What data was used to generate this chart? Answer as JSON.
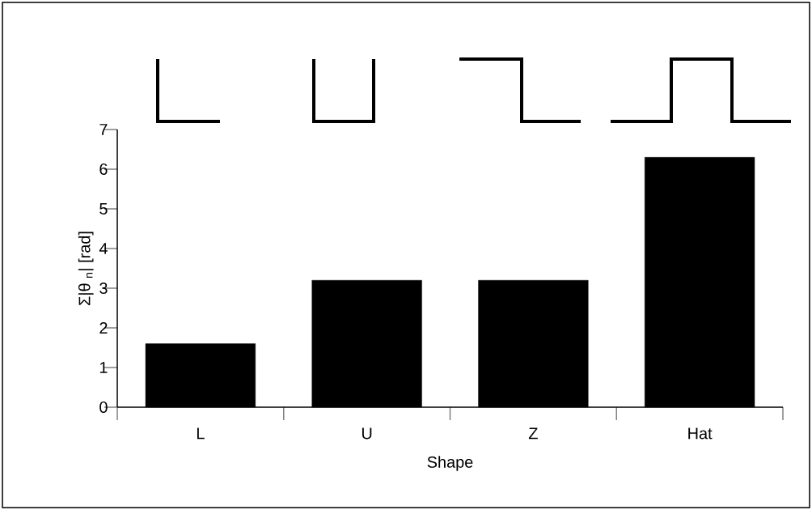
{
  "chart_data": {
    "type": "bar",
    "xlabel": "Shape",
    "ylabel": "Σ|θ $_{n}$|  [rad]",
    "categories": [
      "L",
      "U",
      "Z",
      "Hat"
    ],
    "values": [
      1.6,
      3.2,
      3.2,
      6.3
    ],
    "color": "#000000",
    "ylim": [
      0,
      7
    ],
    "yticks": [
      0,
      1,
      2,
      3,
      4,
      5,
      6,
      7
    ]
  }
}
